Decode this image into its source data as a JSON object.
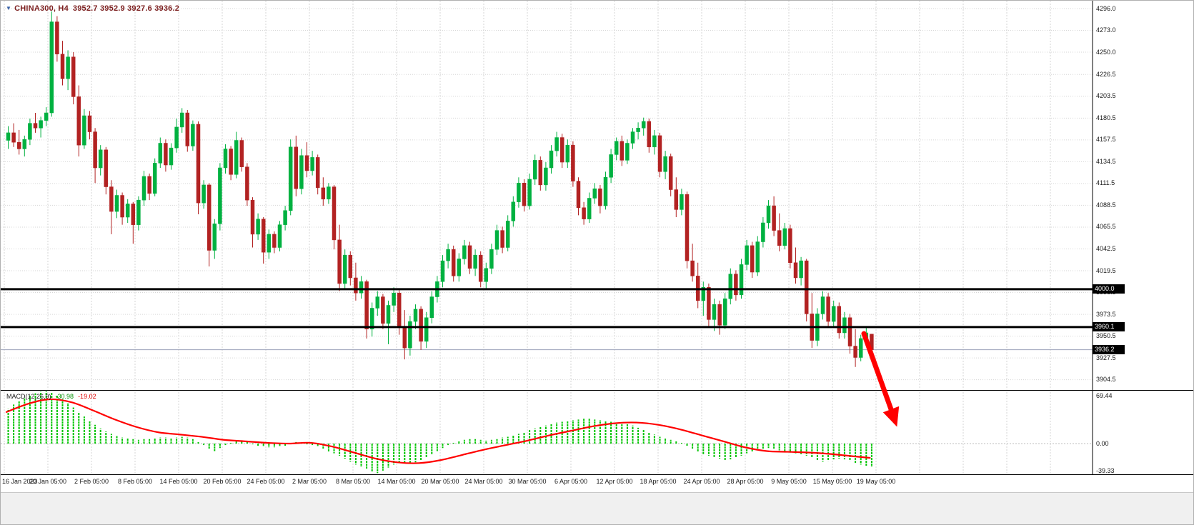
{
  "header": {
    "title": "CHINA300, H4",
    "ohlc": "3952.7 3952.9 3927.6 3936.2"
  },
  "colors": {
    "up": "#00b140",
    "down": "#b22222",
    "signal": "#ff0000",
    "histogram": "#00c400",
    "grid": "#d6d6d6",
    "tag_bg": "#000000",
    "tag_text": "#ffffff",
    "title": "#7b1e1e",
    "arrow": "#ff0000",
    "line_bold": "#000000",
    "line_current": "#9aa0b8"
  },
  "price_axis": {
    "labels": [
      {
        "label": "4296.0",
        "value": 4296.0
      },
      {
        "label": "4273.0",
        "value": 4273.0
      },
      {
        "label": "4250.0",
        "value": 4250.0
      },
      {
        "label": "4226.5",
        "value": 4226.5
      },
      {
        "label": "4203.5",
        "value": 4203.5
      },
      {
        "label": "4180.5",
        "value": 4180.5
      },
      {
        "label": "4157.5",
        "value": 4157.5
      },
      {
        "label": "4134.5",
        "value": 4134.5
      },
      {
        "label": "4111.5",
        "value": 4111.5
      },
      {
        "label": "4088.5",
        "value": 4088.5
      },
      {
        "label": "4065.5",
        "value": 4065.5
      },
      {
        "label": "4042.5",
        "value": 4042.5
      },
      {
        "label": "4019.5",
        "value": 4019.5
      },
      {
        "label": "3996.5",
        "value": 3996.5
      },
      {
        "label": "3973.5",
        "value": 3973.5
      },
      {
        "label": "3950.5",
        "value": 3950.5
      },
      {
        "label": "3927.5",
        "value": 3927.5
      },
      {
        "label": "3904.5",
        "value": 3904.5
      }
    ],
    "tags": [
      {
        "label": "4000.0",
        "value": 4000.0
      },
      {
        "label": "3960.1",
        "value": 3960.1
      },
      {
        "label": "3936.2",
        "value": 3936.2,
        "current": true
      }
    ]
  },
  "time_axis": {
    "labels": [
      "16 Jan 2023",
      "20 Jan 05:00",
      "2 Feb 05:00",
      "8 Feb 05:00",
      "14 Feb 05:00",
      "20 Feb 05:00",
      "24 Feb 05:00",
      "2 Mar 05:00",
      "8 Mar 05:00",
      "14 Mar 05:00",
      "20 Mar 05:00",
      "24 Mar 05:00",
      "30 Mar 05:00",
      "6 Apr 05:00",
      "12 Apr 05:00",
      "18 Apr 05:00",
      "24 Apr 05:00",
      "28 Apr 05:00",
      "9 May 05:00",
      "15 May 05:00",
      "19 May 05:00"
    ]
  },
  "macd": {
    "name": "MACD(12,26,9)",
    "main_value": "-30.98",
    "signal_value": "-19.02",
    "axis": [
      {
        "label": "69.44",
        "value": 69.44
      },
      {
        "label": "0.00",
        "value": 0
      },
      {
        "label": "-39.33",
        "value": -39.33
      }
    ]
  },
  "lines": {
    "bold": [
      4000.0,
      3960.1
    ],
    "current": 3936.2
  },
  "chart_data": {
    "type": "candlestick",
    "symbol": "CHINA300",
    "timeframe": "H4",
    "title": "CHINA300, H4",
    "ylim": [
      3904.5,
      4296.0
    ],
    "x_start_label": "16 Jan 2023",
    "x_end_label": "19 May 05:00",
    "current_ohlc": {
      "open": 3952.7,
      "high": 3952.9,
      "low": 3927.6,
      "close": 3936.2
    },
    "candles": [
      [
        4157,
        4172,
        4148,
        4165
      ],
      [
        4165,
        4175,
        4150,
        4155
      ],
      [
        4155,
        4168,
        4142,
        4148
      ],
      [
        4148,
        4162,
        4140,
        4158
      ],
      [
        4158,
        4180,
        4152,
        4175
      ],
      [
        4175,
        4186,
        4165,
        4170
      ],
      [
        4170,
        4182,
        4160,
        4178
      ],
      [
        4178,
        4192,
        4172,
        4186
      ],
      [
        4186,
        4293,
        4182,
        4282
      ],
      [
        4282,
        4288,
        4240,
        4248
      ],
      [
        4248,
        4262,
        4215,
        4222
      ],
      [
        4222,
        4252,
        4210,
        4245
      ],
      [
        4245,
        4250,
        4195,
        4203
      ],
      [
        4203,
        4215,
        4140,
        4152
      ],
      [
        4152,
        4190,
        4148,
        4183
      ],
      [
        4183,
        4188,
        4158,
        4166
      ],
      [
        4166,
        4170,
        4112,
        4128
      ],
      [
        4128,
        4152,
        4120,
        4147
      ],
      [
        4147,
        4150,
        4100,
        4108
      ],
      [
        4108,
        4115,
        4058,
        4082
      ],
      [
        4082,
        4105,
        4075,
        4099
      ],
      [
        4099,
        4102,
        4068,
        4076
      ],
      [
        4076,
        4095,
        4070,
        4090
      ],
      [
        4090,
        4092,
        4048,
        4068
      ],
      [
        4068,
        4098,
        4062,
        4094
      ],
      [
        4094,
        4125,
        4088,
        4119
      ],
      [
        4119,
        4122,
        4094,
        4101
      ],
      [
        4101,
        4138,
        4098,
        4133
      ],
      [
        4133,
        4160,
        4128,
        4154
      ],
      [
        4154,
        4158,
        4124,
        4131
      ],
      [
        4131,
        4154,
        4126,
        4149
      ],
      [
        4149,
        4180,
        4144,
        4171
      ],
      [
        4171,
        4191,
        4165,
        4186
      ],
      [
        4186,
        4189,
        4145,
        4151
      ],
      [
        4151,
        4178,
        4146,
        4174
      ],
      [
        4174,
        4177,
        4079,
        4091
      ],
      [
        4091,
        4115,
        4085,
        4110
      ],
      [
        4110,
        4112,
        4024,
        4041
      ],
      [
        4041,
        4074,
        4032,
        4069
      ],
      [
        4069,
        4133,
        4062,
        4128
      ],
      [
        4128,
        4153,
        4122,
        4148
      ],
      [
        4148,
        4151,
        4115,
        4121
      ],
      [
        4121,
        4166,
        4117,
        4157
      ],
      [
        4157,
        4160,
        4124,
        4129
      ],
      [
        4129,
        4133,
        4088,
        4094
      ],
      [
        4094,
        4097,
        4044,
        4058
      ],
      [
        4058,
        4080,
        4052,
        4074
      ],
      [
        4074,
        4076,
        4027,
        4039
      ],
      [
        4039,
        4063,
        4032,
        4058
      ],
      [
        4058,
        4061,
        4038,
        4044
      ],
      [
        4044,
        4072,
        4040,
        4068
      ],
      [
        4068,
        4088,
        4062,
        4083
      ],
      [
        4083,
        4158,
        4078,
        4150
      ],
      [
        4150,
        4162,
        4098,
        4106
      ],
      [
        4106,
        4148,
        4100,
        4141
      ],
      [
        4141,
        4155,
        4118,
        4125
      ],
      [
        4125,
        4146,
        4120,
        4139
      ],
      [
        4139,
        4142,
        4100,
        4107
      ],
      [
        4107,
        4118,
        4088,
        4095
      ],
      [
        4095,
        4112,
        4090,
        4108
      ],
      [
        4108,
        4110,
        4042,
        4052
      ],
      [
        4052,
        4068,
        3998,
        4006
      ],
      [
        4006,
        4042,
        4000,
        4036
      ],
      [
        4036,
        4040,
        4004,
        4012
      ],
      [
        4012,
        4028,
        3988,
        3996
      ],
      [
        3996,
        4014,
        3990,
        4008
      ],
      [
        4008,
        4010,
        3948,
        3958
      ],
      [
        3958,
        3986,
        3950,
        3980
      ],
      [
        3980,
        3998,
        3972,
        3992
      ],
      [
        3992,
        3995,
        3958,
        3964
      ],
      [
        3964,
        3988,
        3942,
        3983
      ],
      [
        3983,
        4002,
        3976,
        3996
      ],
      [
        3996,
        3999,
        3952,
        3960
      ],
      [
        3960,
        3978,
        3926,
        3938
      ],
      [
        3938,
        3972,
        3930,
        3966
      ],
      [
        3966,
        3984,
        3958,
        3979
      ],
      [
        3979,
        3982,
        3936,
        3945
      ],
      [
        3945,
        3976,
        3938,
        3970
      ],
      [
        3970,
        3998,
        3964,
        3992
      ],
      [
        3992,
        4014,
        3986,
        4008
      ],
      [
        4008,
        4036,
        4002,
        4030
      ],
      [
        4030,
        4048,
        4022,
        4042
      ],
      [
        4042,
        4046,
        4008,
        4014
      ],
      [
        4014,
        4038,
        4008,
        4032
      ],
      [
        4032,
        4052,
        4026,
        4046
      ],
      [
        4046,
        4050,
        4016,
        4022
      ],
      [
        4022,
        4042,
        4014,
        4036
      ],
      [
        4036,
        4040,
        4002,
        4008
      ],
      [
        4008,
        4028,
        4000,
        4022
      ],
      [
        4022,
        4048,
        4016,
        4042
      ],
      [
        4042,
        4068,
        4036,
        4062
      ],
      [
        4062,
        4066,
        4038,
        4044
      ],
      [
        4044,
        4078,
        4040,
        4072
      ],
      [
        4072,
        4098,
        4066,
        4092
      ],
      [
        4092,
        4118,
        4086,
        4112
      ],
      [
        4112,
        4116,
        4082,
        4088
      ],
      [
        4088,
        4122,
        4084,
        4116
      ],
      [
        4116,
        4142,
        4110,
        4136
      ],
      [
        4136,
        4140,
        4104,
        4110
      ],
      [
        4110,
        4134,
        4104,
        4128
      ],
      [
        4128,
        4152,
        4122,
        4146
      ],
      [
        4146,
        4166,
        4140,
        4160
      ],
      [
        4160,
        4164,
        4128,
        4134
      ],
      [
        4134,
        4158,
        4128,
        4152
      ],
      [
        4152,
        4156,
        4108,
        4114
      ],
      [
        4114,
        4118,
        4078,
        4086
      ],
      [
        4086,
        4092,
        4068,
        4074
      ],
      [
        4074,
        4102,
        4070,
        4096
      ],
      [
        4096,
        4112,
        4090,
        4106
      ],
      [
        4106,
        4110,
        4080,
        4088
      ],
      [
        4088,
        4124,
        4084,
        4118
      ],
      [
        4118,
        4148,
        4112,
        4142
      ],
      [
        4142,
        4160,
        4136,
        4156
      ],
      [
        4156,
        4162,
        4130,
        4136
      ],
      [
        4136,
        4158,
        4132,
        4154
      ],
      [
        4154,
        4170,
        4148,
        4166
      ],
      [
        4166,
        4176,
        4158,
        4170
      ],
      [
        4170,
        4181,
        4162,
        4177
      ],
      [
        4177,
        4180,
        4144,
        4150
      ],
      [
        4150,
        4168,
        4142,
        4162
      ],
      [
        4162,
        4165,
        4118,
        4124
      ],
      [
        4124,
        4146,
        4116,
        4140
      ],
      [
        4140,
        4143,
        4098,
        4105
      ],
      [
        4105,
        4118,
        4076,
        4084
      ],
      [
        4084,
        4106,
        4078,
        4100
      ],
      [
        4100,
        4103,
        4022,
        4030
      ],
      [
        4030,
        4048,
        4008,
        4014
      ],
      [
        4014,
        4028,
        3980,
        3988
      ],
      [
        3988,
        4008,
        3972,
        4002
      ],
      [
        4002,
        4006,
        3960,
        3968
      ],
      [
        3968,
        3990,
        3956,
        3984
      ],
      [
        3984,
        3988,
        3952,
        3962
      ],
      [
        3962,
        3996,
        3958,
        3990
      ],
      [
        3990,
        4022,
        3984,
        4016
      ],
      [
        4016,
        4020,
        3988,
        3994
      ],
      [
        3994,
        4032,
        3990,
        4026
      ],
      [
        4026,
        4052,
        4020,
        4046
      ],
      [
        4046,
        4050,
        4012,
        4018
      ],
      [
        4018,
        4056,
        4014,
        4050
      ],
      [
        4050,
        4076,
        4044,
        4070
      ],
      [
        4070,
        4094,
        4064,
        4088
      ],
      [
        4088,
        4098,
        4056,
        4062
      ],
      [
        4062,
        4080,
        4040,
        4046
      ],
      [
        4046,
        4070,
        4042,
        4064
      ],
      [
        4064,
        4068,
        4022,
        4028
      ],
      [
        4028,
        4044,
        4006,
        4012
      ],
      [
        4012,
        4034,
        4004,
        4030
      ],
      [
        4030,
        4032,
        3966,
        3974
      ],
      [
        3974,
        3996,
        3938,
        3946
      ],
      [
        3946,
        3980,
        3940,
        3974
      ],
      [
        3974,
        3998,
        3968,
        3992
      ],
      [
        3992,
        3996,
        3960,
        3966
      ],
      [
        3966,
        3988,
        3960,
        3982
      ],
      [
        3982,
        3986,
        3948,
        3954
      ],
      [
        3954,
        3976,
        3948,
        3970
      ],
      [
        3970,
        3974,
        3932,
        3940
      ],
      [
        3940,
        3958,
        3918,
        3928
      ],
      [
        3928,
        3952,
        3924,
        3948
      ],
      [
        3948,
        3960,
        3940,
        3954
      ],
      [
        3952.7,
        3952.9,
        3927.6,
        3936.2
      ]
    ],
    "indicator": {
      "type": "MACD",
      "params": "12,26,9",
      "ylim": [
        -39.33,
        69.44
      ],
      "last_histogram": -30.98,
      "last_signal": -19.02,
      "histogram": [
        46,
        52,
        57,
        61,
        64,
        67,
        69,
        69.4,
        68,
        64,
        59,
        54,
        48,
        42,
        36,
        30,
        25,
        20,
        16,
        13,
        10,
        8,
        7,
        6,
        5,
        6,
        6,
        7,
        8,
        8,
        7,
        8,
        9,
        8,
        6,
        2,
        -2,
        -7,
        -10,
        -6,
        -2,
        1,
        3,
        4,
        2,
        -1,
        -3,
        -4,
        -5,
        -5,
        -4,
        -3,
        0,
        2,
        1,
        -1,
        -2,
        -4,
        -7,
        -11,
        -13,
        -16,
        -20,
        -24,
        -28,
        -31,
        -34,
        -37,
        -39.3,
        -36,
        -32,
        -28,
        -25,
        -26,
        -27,
        -25,
        -22,
        -18,
        -14,
        -10,
        -6,
        -2,
        1,
        3,
        5,
        6,
        6,
        5,
        4,
        5,
        6,
        8,
        9,
        11,
        13,
        15,
        18,
        20,
        22,
        24,
        26,
        28,
        29,
        30,
        31,
        32,
        33,
        33,
        32,
        31,
        30,
        29,
        28,
        27,
        26,
        24,
        21,
        18,
        15,
        12,
        9,
        7,
        5,
        3,
        1,
        -3,
        -7,
        -11,
        -14,
        -16,
        -18,
        -20,
        -22,
        -21,
        -19,
        -16,
        -13,
        -11,
        -9,
        -7,
        -6,
        -7,
        -9,
        -11,
        -12,
        -13,
        -14,
        -16,
        -19,
        -22,
        -24,
        -23,
        -21,
        -20,
        -21,
        -23,
        -26,
        -28,
        -30,
        -30.98
      ],
      "signal": {
        "step": 4,
        "values": [
          42,
          53,
          59,
          55,
          44,
          32,
          22,
          15,
          12,
          9,
          5,
          3,
          1,
          0,
          1,
          -4,
          -12,
          -20,
          -25,
          -26,
          -22,
          -15,
          -8,
          -2,
          4,
          11,
          17,
          23,
          27,
          28,
          25,
          19,
          11,
          3,
          -5,
          -10,
          -11,
          -12,
          -14,
          -17,
          -19.02
        ]
      }
    },
    "annotations": [
      {
        "type": "arrow-down-right",
        "color": "#ff0000"
      },
      {
        "type": "hline",
        "price": 4000.0
      },
      {
        "type": "hline",
        "price": 3960.1
      }
    ]
  }
}
